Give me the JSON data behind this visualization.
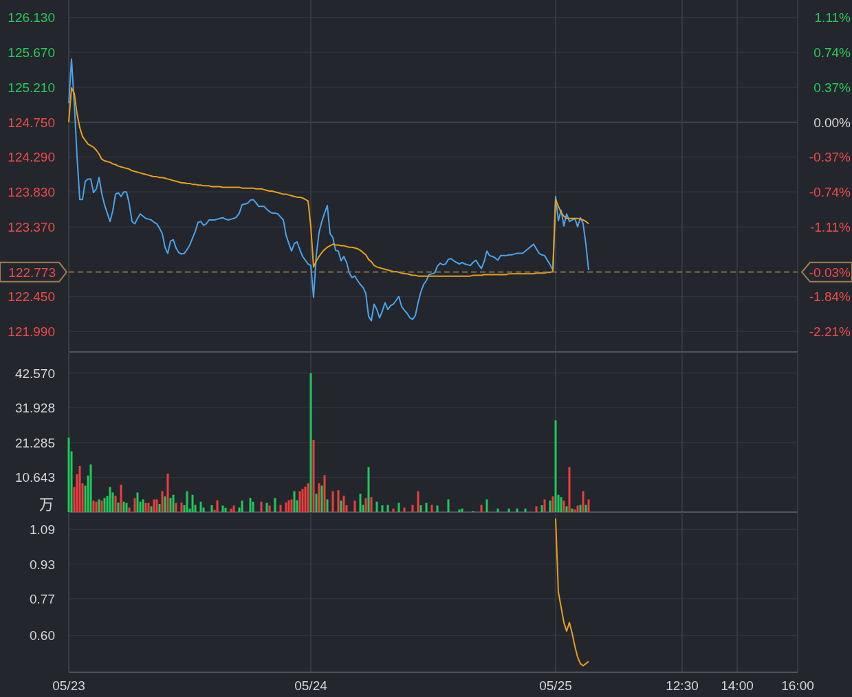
{
  "chart_data": [
    {
      "type": "line",
      "ylim": [
        121.72,
        126.36
      ],
      "yticks": [
        {
          "value": 126.13,
          "label": "126.130"
        },
        {
          "value": 125.67,
          "label": "125.670"
        },
        {
          "value": 125.21,
          "label": "125.210"
        },
        {
          "value": 124.75,
          "label": "124.750"
        },
        {
          "value": 124.29,
          "label": "124.290"
        },
        {
          "value": 123.83,
          "label": "123.830"
        },
        {
          "value": 123.37,
          "label": "123.370"
        },
        {
          "value": 122.45,
          "label": "122.450"
        },
        {
          "value": 121.99,
          "label": "121.990"
        }
      ],
      "y2lim": [
        -2.43,
        1.29
      ],
      "y2ticks": [
        {
          "value": 1.11,
          "label": "1.11%"
        },
        {
          "value": 0.74,
          "label": "0.74%"
        },
        {
          "value": 0.37,
          "label": "0.37%"
        },
        {
          "value": 0,
          "label": "0.00%"
        },
        {
          "value": -0.37,
          "label": "-0.37%"
        },
        {
          "value": -0.74,
          "label": "-0.74%"
        },
        {
          "value": -1.11,
          "label": "-1.11%"
        },
        {
          "value": -1.84,
          "label": "-1.84%"
        },
        {
          "value": -2.21,
          "label": "-2.21%"
        }
      ],
      "grid": true,
      "tick_labels": "y",
      "ref_lines": [
        {
          "axis": "y",
          "value": 122.773,
          "label": "122.773",
          "color": "#a08050",
          "line_style": "dashed"
        }
      ],
      "annotations": [
        "-0.03%"
      ],
      "series": [
        {
          "color": "#4aa3ec",
          "values": [
            125.0,
            125.58,
            125.0,
            124.3,
            123.73,
            123.73,
            123.97,
            124.0,
            124.0,
            123.82,
            123.87,
            124.02,
            123.81,
            123.66,
            123.55,
            123.44,
            123.58,
            123.8,
            123.82,
            123.77,
            123.83,
            123.83,
            123.67,
            123.44,
            123.41,
            123.48,
            123.54,
            123.51,
            123.48,
            123.47,
            123.46,
            123.43,
            123.41,
            123.35,
            123.28,
            123.1,
            123.02,
            123.18,
            123.2,
            123.09,
            123.03,
            123.01,
            123.02,
            123.07,
            123.13,
            123.22,
            123.31,
            123.43,
            123.44,
            123.39,
            123.41,
            123.46,
            123.46,
            123.46,
            123.47,
            123.48,
            123.49,
            123.47,
            123.46,
            123.47,
            123.48,
            123.5,
            123.55,
            123.66,
            123.67,
            123.68,
            123.72,
            123.73,
            123.69,
            123.64,
            123.64,
            123.64,
            123.6,
            123.57,
            123.55,
            123.55,
            123.54,
            123.5,
            123.46,
            123.26,
            123.15,
            123.05,
            123.15,
            123.17,
            123.07,
            122.98,
            122.93,
            122.88,
            122.86,
            122.44,
            123.0,
            123.3,
            123.44,
            123.55,
            123.65,
            123.28,
            123.23,
            123.06,
            123.05,
            122.92,
            122.98,
            122.9,
            122.76,
            122.7,
            122.72,
            122.66,
            122.61,
            122.57,
            122.49,
            122.19,
            122.13,
            122.35,
            122.28,
            122.17,
            122.26,
            122.37,
            122.28,
            122.33,
            122.35,
            122.4,
            122.45,
            122.32,
            122.27,
            122.23,
            122.17,
            122.15,
            122.2,
            122.37,
            122.51,
            122.61,
            122.66,
            122.74,
            122.75,
            122.76,
            122.85,
            122.89,
            122.87,
            122.88,
            122.94,
            122.95,
            122.92,
            122.9,
            122.88,
            122.9,
            122.88,
            122.87,
            122.86,
            122.9,
            122.93,
            122.87,
            122.82,
            122.91,
            123.05,
            122.99,
            122.98,
            122.96,
            122.93,
            122.99,
            122.99,
            122.99,
            123.0,
            123.0,
            123.01,
            123.02,
            123.02,
            123.02,
            123.05,
            123.08,
            123.11,
            123.14,
            123.08,
            123.02,
            123.0,
            122.99,
            122.93,
            122.87,
            122.8,
            123.77,
            123.45,
            123.59,
            123.38,
            123.54,
            123.44,
            123.46,
            123.48,
            123.37,
            123.49,
            123.41,
            123.14,
            122.8,
            null,
            null,
            null,
            null,
            null,
            null,
            null,
            null,
            null,
            null,
            null,
            null,
            null,
            null,
            null,
            null,
            null,
            null,
            null,
            null,
            null,
            null,
            null,
            null,
            null,
            null,
            null,
            null,
            null,
            null,
            null,
            null,
            null,
            null,
            null,
            null,
            null,
            null,
            null,
            null,
            null,
            null,
            null,
            null,
            null,
            null,
            null,
            null,
            null,
            null,
            null,
            null,
            null,
            null,
            null,
            null,
            null,
            null,
            null,
            null,
            null,
            null,
            null,
            null,
            null,
            null,
            null,
            null,
            null,
            null,
            null,
            null,
            null,
            null,
            null,
            null
          ]
        },
        {
          "color": "#e89f1a",
          "values": [
            124.75,
            125.2,
            125.13,
            124.86,
            124.68,
            124.56,
            124.51,
            124.46,
            124.44,
            124.42,
            124.38,
            124.33,
            124.26,
            124.24,
            124.23,
            124.22,
            124.2,
            124.19,
            124.17,
            124.16,
            124.15,
            124.14,
            124.13,
            124.11,
            124.1,
            124.09,
            124.08,
            124.07,
            124.06,
            124.05,
            124.04,
            124.03,
            124.03,
            124.02,
            124.02,
            124.01,
            124.0,
            123.99,
            123.98,
            123.97,
            123.96,
            123.95,
            123.95,
            123.94,
            123.94,
            123.93,
            123.93,
            123.92,
            123.92,
            123.91,
            123.91,
            123.91,
            123.9,
            123.9,
            123.9,
            123.9,
            123.89,
            123.89,
            123.89,
            123.89,
            123.89,
            123.89,
            123.89,
            123.88,
            123.88,
            123.88,
            123.88,
            123.88,
            123.87,
            123.87,
            123.87,
            123.86,
            123.85,
            123.84,
            123.84,
            123.83,
            123.82,
            123.81,
            123.8,
            123.8,
            123.79,
            123.78,
            123.77,
            123.76,
            123.76,
            123.75,
            123.73,
            123.71,
            123.37,
            122.84,
            122.92,
            122.98,
            123.03,
            123.07,
            123.1,
            123.12,
            123.14,
            123.13,
            123.13,
            123.12,
            123.12,
            123.11,
            123.1,
            123.1,
            123.09,
            123.08,
            123.06,
            123.03,
            123.0,
            122.94,
            122.91,
            122.86,
            122.84,
            122.83,
            122.82,
            122.81,
            122.8,
            122.79,
            122.78,
            122.78,
            122.77,
            122.76,
            122.75,
            122.75,
            122.74,
            122.73,
            122.73,
            122.72,
            122.72,
            122.72,
            122.72,
            122.72,
            122.72,
            122.72,
            122.72,
            122.72,
            122.72,
            122.72,
            122.72,
            122.72,
            122.72,
            122.72,
            122.72,
            122.72,
            122.72,
            122.72,
            122.72,
            122.73,
            122.73,
            122.73,
            122.73,
            122.74,
            122.74,
            122.74,
            122.74,
            122.74,
            122.74,
            122.74,
            122.74,
            122.74,
            122.75,
            122.75,
            122.75,
            122.75,
            122.75,
            122.75,
            122.75,
            122.75,
            122.75,
            122.75,
            122.76,
            122.76,
            122.76,
            122.76,
            122.77,
            122.77,
            122.78,
            123.73,
            123.64,
            123.56,
            123.51,
            123.48,
            123.48,
            123.48,
            123.48,
            123.48,
            123.47,
            123.46,
            123.44,
            123.41,
            null,
            null,
            null,
            null,
            null,
            null,
            null,
            null,
            null,
            null,
            null,
            null,
            null,
            null,
            null,
            null,
            null,
            null,
            null,
            null,
            null,
            null,
            null,
            null,
            null,
            null,
            null,
            null,
            null,
            null,
            null,
            null,
            null,
            null,
            null,
            null,
            null,
            null,
            null,
            null,
            null,
            null,
            null,
            null,
            null,
            null,
            null,
            null,
            null,
            null,
            null,
            null,
            null,
            null,
            null,
            null,
            null,
            null,
            null,
            null,
            null,
            null,
            null,
            null,
            null,
            null,
            null,
            null,
            null,
            null,
            null,
            null,
            null,
            null,
            null,
            null
          ]
        }
      ]
    },
    {
      "type": "bar",
      "ylim": [
        0,
        48.6
      ],
      "yticks": [
        {
          "value": 42.57,
          "label": "42.570"
        },
        {
          "value": 31.928,
          "label": "31.928"
        },
        {
          "value": 21.285,
          "label": "21.285"
        },
        {
          "value": 10.643,
          "label": "10.643"
        }
      ],
      "ylabel": "万",
      "grid": true,
      "tick_labels": "y",
      "values": [
        22.8,
        18.6,
        7.7,
        11.6,
        14.1,
        8.8,
        8.1,
        11.2,
        14.6,
        3.5,
        3.2,
        3.9,
        3.5,
        4.3,
        4.9,
        7.7,
        6.0,
        5.0,
        2.9,
        8.4,
        3.2,
        2.8,
        1.4,
        null,
        4.3,
        6.0,
        3.2,
        3.9,
        2.8,
        2.8,
        1.8,
        3.9,
        3.9,
        2.5,
        6.4,
        4.8,
        11.8,
        4.3,
        5.3,
        2.8,
        null,
        2.9,
        2.1,
        6.4,
        1.1,
        5.3,
        2.2,
        null,
        3.2,
        1.4,
        null,
        null,
        2.1,
        0.7,
        3.6,
        null,
        2.0,
        1.3,
        null,
        1.1,
        2.0,
        null,
        1.4,
        3.5,
        null,
        null,
        4.3,
        3.2,
        null,
        null,
        3.2,
        null,
        2.8,
        2.0,
        null,
        4.3,
        null,
        2.2,
        null,
        2.9,
        3.6,
        3.9,
        6.4,
        3.6,
        6.4,
        7.1,
        7.8,
        8.8,
        42.5,
        22.1,
        5.6,
        8.8,
        8.1,
        11.3,
        3.9,
        null,
        6.4,
        null,
        6.7,
        3.5,
        5.0,
        2.1,
        null,
        null,
        3.5,
        null,
        5.6,
        2.2,
        4.3,
        13.8,
        4.6,
        null,
        3.2,
        null,
        2.1,
        null,
        2.2,
        null,
        1.1,
        null,
        2.8,
        null,
        1.4,
        null,
        null,
        2.2,
        null,
        6.4,
        2.1,
        null,
        2.8,
        null,
        2.2,
        null,
        2.0,
        null,
        null,
        null,
        3.9,
        null,
        null,
        null,
        0.8,
        1.1,
        null,
        null,
        null,
        0.3,
        null,
        null,
        2.2,
        null,
        3.9,
        null,
        null,
        null,
        1.1,
        null,
        null,
        null,
        1.1,
        null,
        null,
        1.1,
        null,
        null,
        1.1,
        null,
        null,
        null,
        1.8,
        null,
        2.1,
        3.9,
        null,
        3.5,
        4.8,
        28.1,
        5.3,
        4.6,
        3.5,
        1.8,
        13.8,
        1.1,
        0.8,
        2.0,
        2.2,
        6.4,
        2.2,
        3.9,
        null,
        null,
        null,
        null,
        null,
        null,
        null,
        null,
        null,
        null,
        null,
        null,
        null,
        null,
        null,
        null,
        null,
        null,
        null,
        null,
        null,
        null,
        null,
        null,
        null,
        null,
        null,
        null,
        null,
        null,
        null,
        null,
        null,
        null,
        null,
        null,
        null,
        null,
        null,
        null,
        null,
        null,
        null,
        null,
        null,
        null,
        null,
        null,
        null,
        null,
        null,
        null,
        null,
        null,
        null,
        null,
        null,
        null,
        null,
        null,
        null,
        null,
        null,
        null,
        null,
        null,
        null,
        null,
        null,
        null,
        null,
        null,
        null,
        null,
        null,
        null
      ],
      "colors": [
        "#1fc95a",
        "#1fc95a",
        "#f23c3c",
        "#f23c3c",
        "#f23c3c",
        "#f23c3c",
        "#1fc95a",
        "#1fc95a",
        "#1fc95a",
        "#f23c3c",
        "#f23c3c",
        "#1fc95a",
        "#f23c3c",
        "#1fc95a",
        "#1fc95a",
        "#1fc95a",
        "#1fc95a",
        "#f23c3c",
        "#1fc95a",
        "#f23c3c",
        "#1fc95a",
        "#1fc95a",
        "#f23c3c",
        null,
        "#f23c3c",
        "#1fc95a",
        "#1fc95a",
        "#1fc95a",
        "#f23c3c",
        "#f23c3c",
        "#1fc95a",
        "#f23c3c",
        "#f23c3c",
        "#1fc95a",
        "#f23c3c",
        "#1fc95a",
        "#f23c3c",
        "#1fc95a",
        "#1fc95a",
        "#f23c3c",
        null,
        "#f23c3c",
        "#1fc95a",
        "#1fc95a",
        "#1fc95a",
        "#1fc95a",
        "#1fc95a",
        null,
        "#1fc95a",
        "#1fc95a",
        null,
        null,
        "#1fc95a",
        "#f23c3c",
        "#f23c3c",
        null,
        "#1fc95a",
        "#1fc95a",
        null,
        "#f23c3c",
        "#f23c3c",
        null,
        "#1fc95a",
        "#1fc95a",
        null,
        null,
        "#1fc95a",
        "#1fc95a",
        null,
        null,
        "#f23c3c",
        null,
        "#1fc95a",
        "#f23c3c",
        null,
        "#1fc95a",
        null,
        "#f23c3c",
        null,
        "#f23c3c",
        "#f23c3c",
        "#f23c3c",
        "#1fc95a",
        "#1fc95a",
        "#f23c3c",
        "#f23c3c",
        "#f23c3c",
        "#f23c3c",
        "#1fc95a",
        "#f23c3c",
        "#1fc95a",
        "#f23c3c",
        "#1fc95a",
        "#f23c3c",
        "#1fc95a",
        null,
        "#f23c3c",
        null,
        "#f23c3c",
        "#1fc95a",
        "#f23c3c",
        "#f23c3c",
        null,
        null,
        "#f23c3c",
        null,
        "#1fc95a",
        "#1fc95a",
        "#f23c3c",
        "#1fc95a",
        "#f23c3c",
        null,
        "#1fc95a",
        null,
        "#1fc95a",
        null,
        "#1fc95a",
        null,
        "#f23c3c",
        null,
        "#1fc95a",
        null,
        "#f23c3c",
        null,
        null,
        "#f23c3c",
        null,
        "#f23c3c",
        "#1fc95a",
        null,
        "#1fc95a",
        null,
        "#f23c3c",
        null,
        "#1fc95a",
        null,
        null,
        null,
        "#1fc95a",
        null,
        null,
        null,
        "#1fc95a",
        "#1fc95a",
        null,
        null,
        null,
        "#1fc95a",
        null,
        null,
        "#f23c3c",
        null,
        "#1fc95a",
        null,
        null,
        null,
        "#1fc95a",
        null,
        null,
        null,
        "#1fc95a",
        null,
        null,
        "#1fc95a",
        null,
        null,
        "#1fc95a",
        null,
        null,
        null,
        "#f23c3c",
        null,
        "#1fc95a",
        "#f23c3c",
        null,
        "#1fc95a",
        "#f23c3c",
        "#1fc95a",
        "#1fc95a",
        "#1fc95a",
        "#f23c3c",
        "#1fc95a",
        "#f23c3c",
        "#1fc95a",
        "#f23c3c",
        "#f23c3c",
        "#1fc95a",
        "#f23c3c",
        "#1fc95a",
        "#f23c3c",
        null,
        null,
        null,
        null,
        null,
        null,
        null,
        null,
        null,
        null,
        null,
        null,
        null,
        null,
        null,
        null,
        null,
        null,
        null,
        null,
        null,
        null,
        null,
        null,
        null,
        null,
        null,
        null,
        null,
        null,
        null,
        null,
        null,
        null,
        null,
        null,
        null,
        null,
        null,
        null,
        null,
        null,
        null,
        null,
        null,
        null,
        null,
        null,
        null,
        null,
        null,
        null,
        null,
        null,
        null,
        null,
        null,
        null,
        null,
        null,
        null,
        null,
        null,
        null,
        null,
        null,
        null,
        null,
        null,
        null,
        null,
        null,
        null,
        null,
        null,
        null
      ]
    },
    {
      "type": "line",
      "categories": [
        "05/23",
        null,
        null,
        null,
        null,
        null,
        null,
        null,
        null,
        null,
        null,
        null,
        null,
        null,
        null,
        null,
        null,
        null,
        null,
        null,
        null,
        null,
        null,
        null,
        null,
        null,
        null,
        null,
        null,
        null,
        null,
        null,
        null,
        null,
        null,
        null,
        null,
        null,
        null,
        null,
        null,
        null,
        null,
        null,
        null,
        null,
        null,
        null,
        null,
        null,
        null,
        null,
        null,
        null,
        null,
        null,
        null,
        null,
        null,
        null,
        null,
        null,
        null,
        null,
        null,
        null,
        null,
        null,
        null,
        null,
        null,
        null,
        null,
        null,
        null,
        null,
        null,
        null,
        null,
        null,
        null,
        null,
        null,
        null,
        null,
        null,
        null,
        null,
        "05/24",
        null,
        null,
        null,
        null,
        null,
        null,
        null,
        null,
        null,
        null,
        null,
        null,
        null,
        null,
        null,
        null,
        null,
        null,
        null,
        null,
        null,
        null,
        null,
        null,
        null,
        null,
        null,
        null,
        null,
        null,
        null,
        null,
        null,
        null,
        null,
        null,
        null,
        null,
        null,
        null,
        null,
        null,
        null,
        null,
        null,
        null,
        null,
        null,
        null,
        null,
        null,
        null,
        null,
        null,
        null,
        null,
        null,
        null,
        null,
        null,
        null,
        null,
        null,
        null,
        null,
        null,
        null,
        null,
        null,
        null,
        null,
        null,
        null,
        null,
        null,
        null,
        null,
        null,
        null,
        null,
        null,
        null,
        null,
        null,
        null,
        null,
        null,
        null,
        "05/25",
        null,
        null,
        null,
        null,
        null,
        null,
        null,
        null,
        null,
        null,
        null,
        null,
        null,
        null,
        null,
        null,
        null,
        null,
        null,
        null,
        null,
        null,
        null,
        null,
        null,
        null,
        null,
        null,
        null,
        null,
        null,
        null,
        null,
        null,
        null,
        null,
        null,
        null,
        null,
        null,
        null,
        null,
        null,
        null,
        null,
        "12:30",
        null,
        null,
        null,
        null,
        null,
        null,
        null,
        null,
        null,
        null,
        null,
        null,
        null,
        null,
        null,
        null,
        null,
        null,
        null,
        "14:00",
        null,
        null,
        null,
        null,
        null,
        null,
        null,
        null,
        null,
        null,
        null,
        null,
        null,
        null,
        null,
        null,
        null,
        null,
        null,
        null,
        null,
        "16:00"
      ],
      "ylim": [
        0.43,
        1.17
      ],
      "yticks": [
        1.09,
        0.93,
        0.77,
        {
          "value": 0.6,
          "label": "0.60"
        }
      ],
      "grid": true,
      "series": [
        {
          "color": "#e89f1a",
          "values": [
            null,
            null,
            null,
            null,
            null,
            null,
            null,
            null,
            null,
            null,
            null,
            null,
            null,
            null,
            null,
            null,
            null,
            null,
            null,
            null,
            null,
            null,
            null,
            null,
            null,
            null,
            null,
            null,
            null,
            null,
            null,
            null,
            null,
            null,
            null,
            null,
            null,
            null,
            null,
            null,
            null,
            null,
            null,
            null,
            null,
            null,
            null,
            null,
            null,
            null,
            null,
            null,
            null,
            null,
            null,
            null,
            null,
            null,
            null,
            null,
            null,
            null,
            null,
            null,
            null,
            null,
            null,
            null,
            null,
            null,
            null,
            null,
            null,
            null,
            null,
            null,
            null,
            null,
            null,
            null,
            null,
            null,
            null,
            null,
            null,
            null,
            null,
            null,
            null,
            null,
            null,
            null,
            null,
            null,
            null,
            null,
            null,
            null,
            null,
            null,
            null,
            null,
            null,
            null,
            null,
            null,
            null,
            null,
            null,
            null,
            null,
            null,
            null,
            null,
            null,
            null,
            null,
            null,
            null,
            null,
            null,
            null,
            null,
            null,
            null,
            null,
            null,
            null,
            null,
            null,
            null,
            null,
            null,
            null,
            null,
            null,
            null,
            null,
            null,
            null,
            null,
            null,
            null,
            null,
            null,
            null,
            null,
            null,
            null,
            null,
            null,
            null,
            null,
            null,
            null,
            null,
            null,
            null,
            null,
            null,
            null,
            null,
            null,
            null,
            null,
            null,
            null,
            null,
            null,
            null,
            null,
            null,
            null,
            null,
            null,
            null,
            null,
            1.14,
            0.8,
            0.73,
            0.66,
            0.62,
            0.66,
            0.61,
            0.55,
            0.5,
            0.47,
            0.46,
            0.47,
            0.48,
            null,
            null,
            null,
            null,
            null,
            null,
            null,
            null,
            null,
            null,
            null,
            null,
            null,
            null,
            null,
            null,
            null,
            null,
            null,
            null,
            null,
            null,
            null,
            null,
            null,
            null,
            null,
            null,
            null,
            null,
            null,
            null,
            null,
            null,
            null,
            null,
            null,
            null,
            null,
            null,
            null,
            null,
            null,
            null,
            null,
            null,
            null,
            null,
            null,
            null,
            null,
            null,
            null,
            null,
            null,
            null,
            null,
            null,
            null,
            null,
            null,
            null,
            null,
            null,
            null,
            null,
            null,
            null,
            null,
            null,
            null,
            null,
            null,
            null,
            null,
            null
          ]
        }
      ]
    }
  ]
}
